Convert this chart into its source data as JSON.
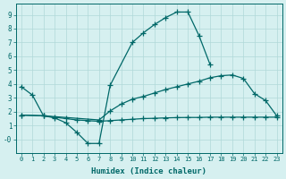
{
  "background_color": "#d6f0f0",
  "grid_color": "#b0d8d8",
  "line_color": "#006868",
  "xlabel": "Humidex (Indice chaleur)",
  "xlim": [
    -0.5,
    23.5
  ],
  "ylim": [
    -1.0,
    9.8
  ],
  "xticks": [
    0,
    1,
    2,
    3,
    4,
    5,
    6,
    7,
    8,
    9,
    10,
    11,
    12,
    13,
    14,
    15,
    16,
    17,
    18,
    19,
    20,
    21,
    22,
    23
  ],
  "yticks": [
    0,
    1,
    2,
    3,
    4,
    5,
    6,
    7,
    8,
    9
  ],
  "ytick_labels": [
    "-0",
    "1",
    "2",
    "3",
    "4",
    "5",
    "6",
    "7",
    "8",
    "9"
  ],
  "line1_x": [
    0,
    1,
    2,
    3,
    4,
    5,
    6,
    7,
    8,
    10,
    11,
    12,
    13,
    14,
    15,
    16,
    17
  ],
  "line1_y": [
    3.8,
    3.2,
    1.7,
    1.55,
    1.2,
    0.5,
    -0.3,
    -0.3,
    3.9,
    7.0,
    7.7,
    8.3,
    8.8,
    9.2,
    9.2,
    7.5,
    5.4
  ],
  "line2_x": [
    0,
    2,
    3,
    4,
    5,
    6,
    7,
    8,
    9,
    10,
    11,
    12,
    13,
    14,
    15,
    16,
    17,
    18,
    19,
    20,
    21,
    22,
    23
  ],
  "line2_y": [
    1.75,
    1.7,
    1.6,
    1.5,
    1.4,
    1.35,
    1.3,
    1.35,
    1.4,
    1.45,
    1.5,
    1.52,
    1.55,
    1.57,
    1.58,
    1.58,
    1.6,
    1.6,
    1.6,
    1.6,
    1.6,
    1.6,
    1.6
  ],
  "line3_x": [
    0,
    2,
    7,
    8,
    9,
    10,
    11,
    12,
    13,
    14,
    15,
    16,
    17,
    18,
    19,
    20,
    21,
    22,
    23
  ],
  "line3_y": [
    1.75,
    1.7,
    1.4,
    2.05,
    2.55,
    2.9,
    3.1,
    3.35,
    3.6,
    3.8,
    4.0,
    4.2,
    4.45,
    4.6,
    4.65,
    4.4,
    3.3,
    2.8,
    1.7
  ]
}
